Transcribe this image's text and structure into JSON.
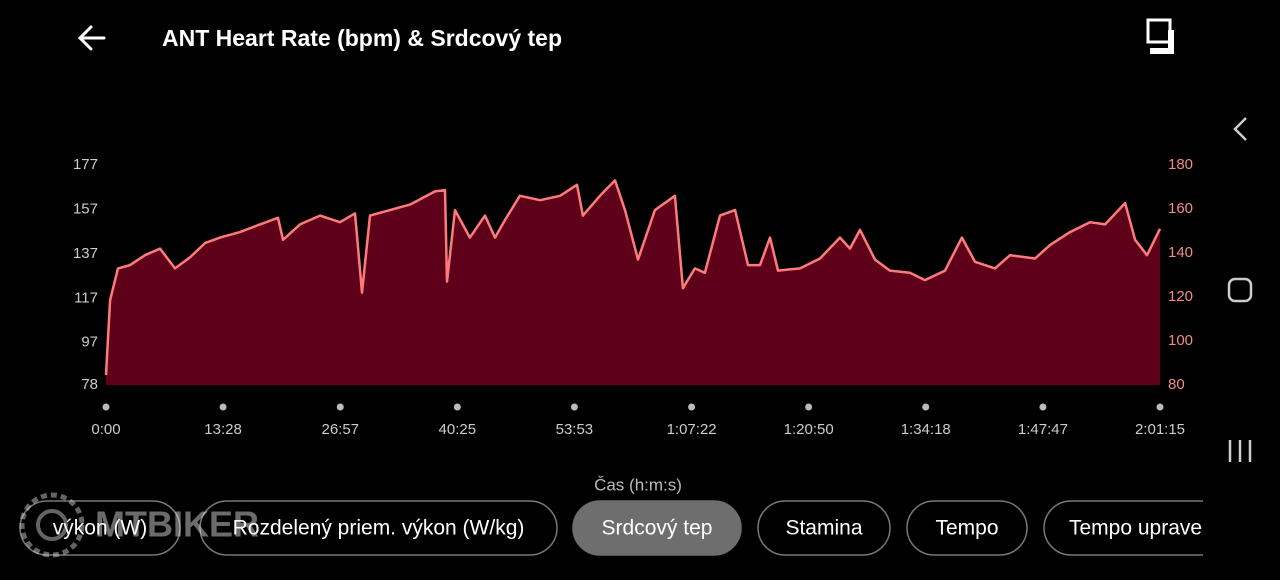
{
  "header": {
    "title": "ANT Heart Rate (bpm) & Srdcový tep"
  },
  "chart_data": {
    "type": "area",
    "x": [
      0,
      28,
      83,
      166,
      269,
      373,
      476,
      580,
      683,
      787,
      925,
      1063,
      1187,
      1222,
      1339,
      1477,
      1615,
      1719,
      1767,
      1822,
      1960,
      2098,
      2271,
      2340,
      2354,
      2409,
      2512,
      2616,
      2685,
      2754,
      2857,
      2996,
      3134,
      3251,
      3292,
      3410,
      3513,
      3582,
      3672,
      3789,
      3927,
      3982,
      4065,
      4134,
      4238,
      4342,
      4431,
      4514,
      4583,
      4638,
      4790,
      4928,
      5066,
      5135,
      5204,
      5308,
      5411,
      5549,
      5653,
      5791,
      5908,
      5998,
      6136,
      6240,
      6412,
      6516,
      6654,
      6792,
      6896,
      7034,
      7103,
      7185,
      7275
    ],
    "series": [
      {
        "color": "#ff7b7b",
        "axis": "y2",
        "values": [
          84.5,
          118.6,
          133,
          134.5,
          139,
          142,
          133,
          138,
          144.5,
          147,
          149.5,
          153,
          156,
          146,
          153,
          157,
          154,
          158,
          122,
          157,
          159.5,
          162,
          168,
          168.6,
          127,
          159.5,
          147,
          157,
          147,
          155,
          166,
          164,
          166,
          171,
          157,
          166,
          173,
          159.5,
          137,
          159.5,
          166,
          124,
          133,
          131,
          157,
          159.5,
          134.5,
          134.5,
          147,
          132,
          133,
          137.5,
          147,
          142,
          150.5,
          137,
          132,
          131,
          127.7,
          132,
          147,
          136,
          133,
          139,
          137.5,
          143.6,
          149.5,
          154,
          153,
          162.7,
          146,
          139,
          151
        ]
      }
    ],
    "xlim": [
      0,
      7275
    ],
    "xticks": [
      {
        "value": 0,
        "label": "0:00"
      },
      {
        "value": 808,
        "label": "13:28"
      },
      {
        "value": 1617,
        "label": "26:57"
      },
      {
        "value": 2425,
        "label": "40:25"
      },
      {
        "value": 3233,
        "label": "53:53"
      },
      {
        "value": 4042,
        "label": "1:07:22"
      },
      {
        "value": 4850,
        "label": "1:20:50"
      },
      {
        "value": 5658,
        "label": "1:34:18"
      },
      {
        "value": 6467,
        "label": "1:47:47"
      },
      {
        "value": 7275,
        "label": "2:01:15"
      }
    ],
    "ylim": [
      78,
      177
    ],
    "yticks": [
      78,
      97,
      117,
      137,
      157,
      177
    ],
    "y2lim": [
      80,
      180
    ],
    "y2ticks": [
      80,
      100,
      120,
      140,
      160,
      180
    ],
    "xlabel": "Čas (h:m:s)",
    "fill": "#5e0019"
  },
  "chips": [
    {
      "label": "výkon (W)"
    },
    {
      "label": "Rozdelený priem. výkon (W/kg)"
    },
    {
      "label": "Srdcový tep",
      "selected": true
    },
    {
      "label": "Stamina"
    },
    {
      "label": "Tempo"
    },
    {
      "label": "Tempo uprave"
    }
  ],
  "watermark": "MTBIKER"
}
